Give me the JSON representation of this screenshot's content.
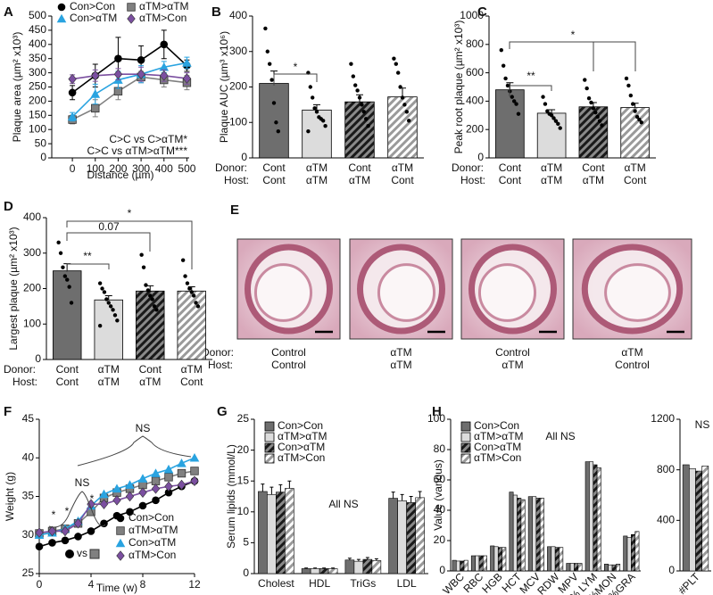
{
  "chart_data": [
    {
      "type": "line",
      "panel": "A",
      "ylabel": "Plaque area (µm² x10³)",
      "xlabel": "Distance (µm)",
      "x": [
        0,
        100,
        200,
        300,
        400,
        500
      ],
      "xlim": [
        -90,
        510
      ],
      "xticks": [
        0,
        100,
        200,
        300,
        400,
        500
      ],
      "ylim": [
        0,
        500
      ],
      "yticks": [
        0,
        50,
        100,
        150,
        200,
        250,
        300,
        350,
        400,
        450,
        500
      ],
      "legend": "top",
      "series": [
        {
          "name": "Con>Con",
          "color": "#000000",
          "marker": "circle",
          "values": [
            230,
            290,
            350,
            345,
            400,
            325
          ],
          "errors": [
            25,
            40,
            75,
            50,
            50,
            20
          ]
        },
        {
          "name": "αTM>αTM",
          "color": "#808080",
          "marker": "square",
          "values": [
            135,
            175,
            235,
            285,
            275,
            265
          ],
          "errors": [
            15,
            30,
            30,
            20,
            25,
            25
          ]
        },
        {
          "name": "Con>αTM",
          "color": "#29a3e0",
          "marker": "triangle",
          "values": [
            145,
            225,
            275,
            295,
            320,
            335
          ],
          "errors": [
            15,
            35,
            30,
            30,
            20,
            20
          ]
        },
        {
          "name": "αTM>Con",
          "color": "#7b4fa0",
          "marker": "diamond",
          "values": [
            278,
            290,
            295,
            295,
            290,
            280
          ],
          "errors": [
            15,
            20,
            20,
            25,
            20,
            20
          ]
        }
      ],
      "annotations": [
        "C>C vs C>αTM*",
        "C>C vs αTM>αTM***"
      ]
    },
    {
      "type": "bar",
      "panel": "B",
      "ylabel": "Plaque AUC (µm³ x10⁶)",
      "row_labels": [
        "Donor:",
        "Host:"
      ],
      "categories": [
        "Cont",
        "αTM",
        "Cont",
        "αTM"
      ],
      "host_categories": [
        "Cont",
        "αTM",
        "αTM",
        "Cont"
      ],
      "fills": [
        "solid-dark",
        "solid-light",
        "hatch-dark",
        "hatch-light"
      ],
      "values": [
        210,
        135,
        158,
        172
      ],
      "errors": [
        35,
        15,
        20,
        25
      ],
      "points": [
        [
          365,
          300,
          265,
          220,
          155,
          100,
          75
        ],
        [
          240,
          200,
          170,
          140,
          130,
          115,
          110,
          105,
          90,
          75
        ],
        [
          265,
          230,
          205,
          190,
          170,
          150,
          130,
          110,
          90
        ],
        [
          280,
          265,
          240,
          200,
          170,
          150,
          130,
          105
        ]
      ],
      "ylim": [
        0,
        400
      ],
      "yticks": [
        0,
        100,
        200,
        300,
        400
      ],
      "annotations": [
        "*"
      ]
    },
    {
      "type": "bar",
      "panel": "C",
      "ylabel": "Peak root plaque (µm² x10³)",
      "row_labels": [
        "Donor:",
        "Host:"
      ],
      "categories": [
        "Cont",
        "αTM",
        "Cont",
        "αTM"
      ],
      "host_categories": [
        "Cont",
        "αTM",
        "αTM",
        "Cont"
      ],
      "fills": [
        "solid-dark",
        "solid-light",
        "hatch-dark",
        "hatch-light"
      ],
      "values": [
        480,
        315,
        360,
        355
      ],
      "errors": [
        50,
        25,
        30,
        30
      ],
      "points": [
        [
          760,
          650,
          560,
          510,
          470,
          430,
          400,
          380,
          310
        ],
        [
          430,
          380,
          330,
          310,
          300,
          280,
          260,
          240,
          210
        ],
        [
          550,
          490,
          420,
          390,
          350,
          320,
          290,
          260,
          230
        ],
        [
          560,
          510,
          440,
          380,
          330,
          290,
          270,
          250
        ]
      ],
      "ylim": [
        0,
        1000
      ],
      "yticks": [
        0,
        200,
        400,
        600,
        800,
        1000
      ],
      "annotations": [
        "*",
        "**"
      ]
    },
    {
      "type": "bar",
      "panel": "D",
      "ylabel": "Largest plaque (µm² x10³)",
      "row_labels": [
        "Donor:",
        "Host:"
      ],
      "categories": [
        "Cont",
        "αTM",
        "Cont",
        "αTM"
      ],
      "host_categories": [
        "Cont",
        "αTM",
        "αTM",
        "Cont"
      ],
      "fills": [
        "solid-dark",
        "solid-light",
        "hatch-dark",
        "hatch-light"
      ],
      "values": [
        250,
        168,
        193,
        193
      ],
      "errors": [
        20,
        12,
        15,
        12
      ],
      "points": [
        [
          330,
          300,
          260,
          235,
          225,
          205,
          160
        ],
        [
          215,
          200,
          190,
          170,
          160,
          150,
          140,
          125,
          110,
          95
        ],
        [
          295,
          260,
          210,
          195,
          180,
          170,
          150,
          140
        ],
        [
          280,
          235,
          215,
          200,
          190,
          180,
          160,
          150
        ]
      ],
      "ylim": [
        0,
        400
      ],
      "yticks": [
        0,
        100,
        200,
        300,
        400
      ],
      "annotations": [
        "**",
        "0.07",
        "*"
      ]
    },
    {
      "type": "line",
      "panel": "F",
      "ylabel": "Weight (g)",
      "xlabel": "Time (w)",
      "x": [
        0,
        1,
        2,
        3,
        4,
        5,
        6,
        7,
        8,
        9,
        10,
        11,
        12
      ],
      "xlim": [
        0,
        12
      ],
      "xticks": [
        0,
        4,
        8,
        12
      ],
      "ylim": [
        25,
        45
      ],
      "yticks": [
        25,
        30,
        35,
        40,
        45
      ],
      "legend": "lower right",
      "series": [
        {
          "name": "Con>Con",
          "color": "#000000",
          "marker": "circle",
          "values": [
            28.5,
            29,
            29.3,
            29.8,
            30.5,
            31.5,
            32.5,
            33,
            33.8,
            34.5,
            35.5,
            36.3,
            37
          ]
        },
        {
          "name": "αTM>αTM",
          "color": "#808080",
          "marker": "square",
          "values": [
            30.2,
            30.5,
            30.8,
            31.5,
            33,
            34.8,
            35.5,
            36,
            36.5,
            37,
            37.5,
            38,
            38.3
          ]
        },
        {
          "name": "Con>αTM",
          "color": "#29a3e0",
          "marker": "triangle",
          "values": [
            30,
            30.3,
            30.8,
            31.8,
            33.8,
            35.3,
            36,
            36.5,
            37.3,
            38,
            38.5,
            39.3,
            40
          ]
        },
        {
          "name": "αTM>Con",
          "color": "#7b4fa0",
          "marker": "diamond",
          "values": [
            30.3,
            30.5,
            30.5,
            31.5,
            34,
            34,
            34.5,
            35,
            35.5,
            36,
            36.3,
            36.5,
            37
          ]
        }
      ],
      "annotations": [
        "NS",
        "NS",
        "*",
        "*",
        "*",
        "vs"
      ]
    },
    {
      "type": "bar",
      "panel": "G",
      "ylabel": "Serum lipids (mmol/L)",
      "categories": [
        "Cholest",
        "HDL",
        "TriGs",
        "LDL"
      ],
      "ylim": [
        0,
        25
      ],
      "yticks": [
        0,
        5,
        10,
        15,
        20,
        25
      ],
      "legend": "upper left",
      "series": [
        {
          "name": "Con>Con",
          "fill": "solid-dark",
          "values": [
            13.3,
            0.8,
            2.2,
            12.2
          ],
          "errors": [
            1.2,
            0.1,
            0.3,
            1
          ]
        },
        {
          "name": "αTM>αTM",
          "fill": "solid-light",
          "values": [
            12.8,
            0.8,
            2.0,
            11.8
          ],
          "errors": [
            1.2,
            0.1,
            0.3,
            1
          ]
        },
        {
          "name": "Con>αTM",
          "fill": "hatch-dark",
          "values": [
            13.2,
            0.8,
            2.3,
            11.5
          ],
          "errors": [
            1.2,
            0.1,
            0.3,
            1
          ]
        },
        {
          "name": "αTM>Con",
          "fill": "hatch-light",
          "values": [
            13.8,
            0.8,
            2.1,
            12.3
          ],
          "errors": [
            1.2,
            0.1,
            0.3,
            1
          ]
        }
      ],
      "annotations": [
        "All NS"
      ]
    },
    {
      "type": "bar",
      "panel": "H",
      "ylabel": "Value (various)",
      "categories": [
        "WBC",
        "RBC",
        "HGB",
        "HCT",
        "MCV",
        "RDW",
        "MPV",
        "% LYM",
        "%MON",
        "%GRA"
      ],
      "ylim": [
        0,
        100
      ],
      "yticks": [
        0,
        20,
        40,
        60,
        80,
        100
      ],
      "legend": "upper left",
      "series": [
        {
          "name": "Con>Con",
          "fill": "solid-dark",
          "values": [
            7,
            10,
            16.5,
            52,
            49,
            16,
            5,
            72,
            4.5,
            23
          ]
        },
        {
          "name": "αTM>αTM",
          "fill": "solid-light",
          "values": [
            6.5,
            10,
            16,
            50,
            49,
            16,
            5,
            72,
            4,
            22
          ]
        },
        {
          "name": "Con>αTM",
          "fill": "hatch-dark",
          "values": [
            6.5,
            10,
            15.5,
            48,
            48,
            15.5,
            5,
            70,
            4,
            24
          ]
        },
        {
          "name": "αTM>Con",
          "fill": "hatch-light",
          "values": [
            7,
            10,
            15.5,
            47,
            48,
            15.5,
            5,
            68,
            4.5,
            26
          ]
        }
      ],
      "annotations": [
        "All NS"
      ]
    },
    {
      "type": "bar",
      "categories": [
        "#PLT"
      ],
      "ylim": [
        0,
        1200
      ],
      "yticks": [
        0,
        400,
        800,
        1200
      ],
      "series": [
        {
          "fill": "solid-dark",
          "values": [
            840
          ]
        },
        {
          "fill": "solid-light",
          "values": [
            810
          ]
        },
        {
          "fill": "hatch-dark",
          "values": [
            790
          ]
        },
        {
          "fill": "hatch-light",
          "values": [
            830
          ]
        }
      ],
      "annotations": [
        "NS"
      ]
    }
  ],
  "histology": {
    "panel": "E",
    "row_labels": [
      "Donor:",
      "Host:"
    ],
    "images": [
      {
        "donor": "Control",
        "host": "Control"
      },
      {
        "donor": "αTM",
        "host": "αTM"
      },
      {
        "donor": "Control",
        "host": "αTM"
      },
      {
        "donor": "αTM",
        "host": "Control"
      }
    ]
  }
}
